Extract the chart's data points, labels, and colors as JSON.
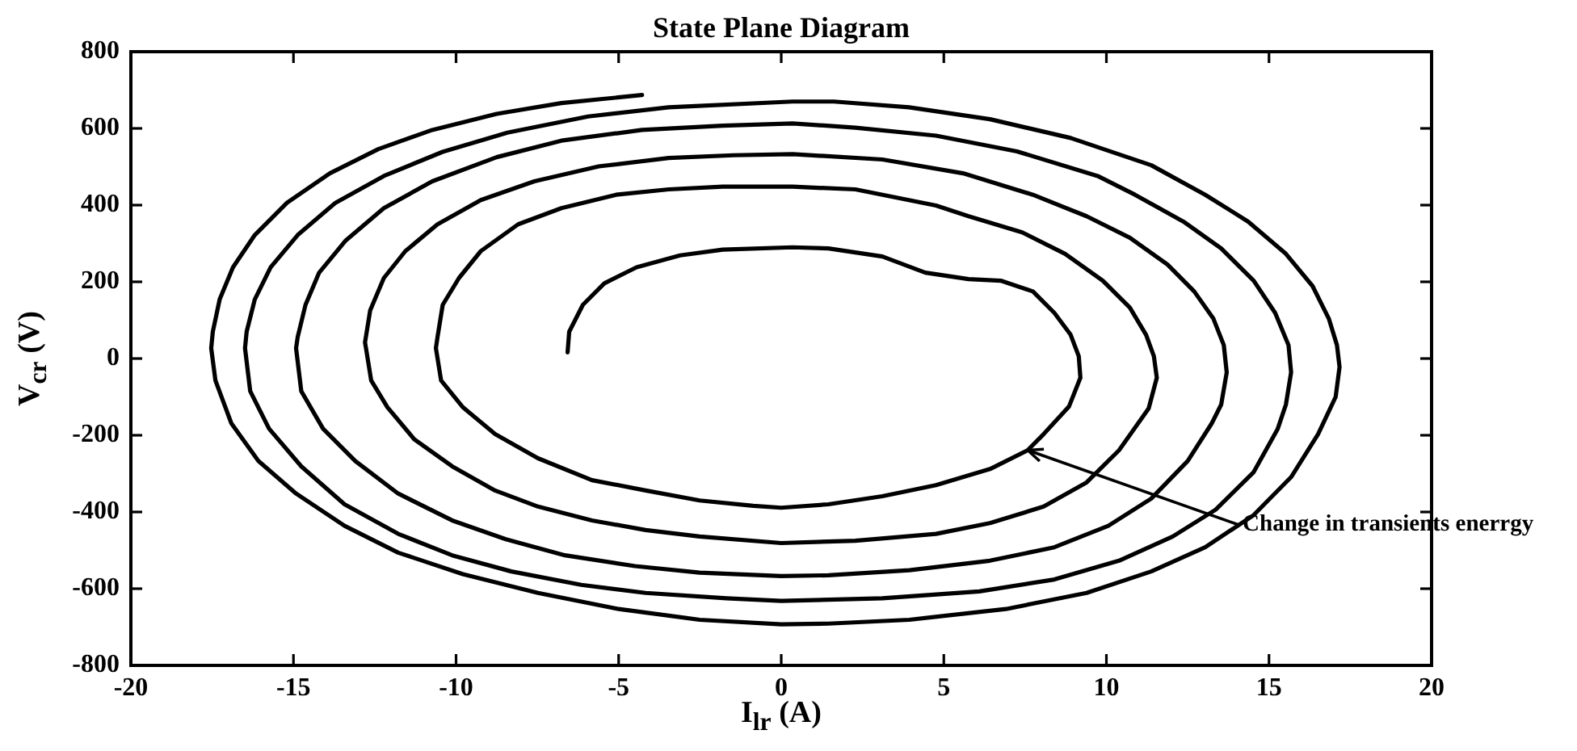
{
  "chart_data": {
    "type": "line",
    "title": "State Plane Diagram",
    "xlabel": "I$_{lr}$ (A)",
    "ylabel": "V$_{cr}$ (V)",
    "xlim": [
      -20,
      20
    ],
    "xticks": [
      -20,
      -15,
      -10,
      -5,
      0,
      5,
      10,
      15,
      20
    ],
    "ylim": [
      -800,
      800
    ],
    "yticks": [
      -800,
      -600,
      -400,
      -200,
      0,
      200,
      400,
      600,
      800
    ],
    "color": "#000000",
    "x": [
      -6.57,
      -6.52,
      -6.1,
      -5.44,
      -4.45,
      -3.11,
      -1.8,
      0.35,
      1.45,
      3.11,
      4.43,
      5.76,
      6.75,
      7.74,
      8.4,
      8.9,
      9.15,
      9.2,
      8.85,
      8.07,
      7.58,
      6.42,
      4.76,
      3.11,
      1.45,
      0,
      -0.86,
      -2.51,
      -4.17,
      -5.82,
      -7.48,
      -8.8,
      -9.79,
      -10.46,
      -10.62,
      -10.57,
      -10.41,
      -9.91,
      -9.24,
      -8.09,
      -6.76,
      -5.08,
      -3.46,
      -1.8,
      0.35,
      2.28,
      4.76,
      5.76,
      7.41,
      8.73,
      9.89,
      10.72,
      11.22,
      11.46,
      11.55,
      11.3,
      10.39,
      9.39,
      8.07,
      6.42,
      4.76,
      2.28,
      0,
      -2.51,
      -4.17,
      -5.82,
      -7.48,
      -8.8,
      -10.12,
      -11.28,
      -12.11,
      -12.61,
      -12.77,
      -12.8,
      -12.64,
      -12.22,
      -11.56,
      -10.57,
      -9.24,
      -7.59,
      -5.61,
      -3.46,
      -1.47,
      0.35,
      3.11,
      5.59,
      7.74,
      9.39,
      10.72,
      11.88,
      12.7,
      13.29,
      13.61,
      13.7,
      13.53,
      13.24,
      12.5,
      11.38,
      10.06,
      8.4,
      6.42,
      3.94,
      1.45,
      0,
      -2.51,
      -4.5,
      -6.65,
      -8.47,
      -10.12,
      -11.78,
      -13.1,
      -14.09,
      -14.76,
      -14.92,
      -14.87,
      -14.63,
      -14.21,
      -13.39,
      -12.22,
      -10.73,
      -8.75,
      -6.76,
      -4.28,
      -1.8,
      0.35,
      2.28,
      4.76,
      7.25,
      9.73,
      10.88,
      12.37,
      13.53,
      14.53,
      15.19,
      15.6,
      15.68,
      15.52,
      15.27,
      14.53,
      13.36,
      12.04,
      10.39,
      8.4,
      6.09,
      3.11,
      0,
      -1.69,
      -4.17,
      -6.15,
      -8.3,
      -10.12,
      -11.78,
      -13.43,
      -14.76,
      -15.75,
      -16.33,
      -16.49,
      -16.44,
      -16.19,
      -15.7,
      -14.87,
      -13.71,
      -12.22,
      -10.41,
      -8.42,
      -5.94,
      -3.46,
      0.35,
      1.62,
      3.93,
      6.42,
      8.9,
      11.38,
      13.04,
      14.36,
      15.52,
      16.34,
      16.84,
      17.09,
      17.17,
      17.05,
      16.51,
      15.68,
      14.53,
      13.04,
      11.38,
      9.39,
      6.91,
      3.94,
      1.45,
      0,
      -2.51,
      -5,
      -7.48,
      -9.79,
      -11.78,
      -13.43,
      -14.92,
      -16.08,
      -16.91,
      -17.4,
      -17.53,
      -17.48,
      -17.27,
      -16.86,
      -16.19,
      -15.2,
      -13.88,
      -12.39,
      -10.73,
      -8.75,
      -6.76,
      -4.28
    ],
    "values": [
      16,
      70,
      140,
      196,
      238,
      269,
      284,
      290,
      287,
      266,
      224,
      207,
      203,
      175,
      119,
      62,
      6,
      -50,
      -125,
      -197,
      -239,
      -288,
      -330,
      -359,
      -380,
      -389,
      -384,
      -370,
      -344,
      -317,
      -260,
      -197,
      -127,
      -57,
      27,
      56,
      140,
      210,
      280,
      350,
      392,
      427,
      441,
      448,
      448,
      441,
      399,
      371,
      329,
      273,
      203,
      133,
      62,
      6,
      -50,
      -130,
      -239,
      -323,
      -386,
      -429,
      -457,
      -475,
      -481,
      -464,
      -447,
      -422,
      -386,
      -344,
      -281,
      -211,
      -127,
      -57,
      27,
      42,
      126,
      210,
      280,
      350,
      413,
      462,
      501,
      523,
      530,
      533,
      519,
      483,
      427,
      371,
      315,
      245,
      175,
      104,
      35,
      -36,
      -120,
      -169,
      -267,
      -365,
      -436,
      -492,
      -527,
      -552,
      -565,
      -567,
      -558,
      -541,
      -513,
      -471,
      -422,
      -352,
      -267,
      -183,
      -85,
      27,
      56,
      140,
      224,
      308,
      392,
      462,
      525,
      568,
      596,
      607,
      613,
      602,
      581,
      540,
      476,
      427,
      357,
      287,
      203,
      119,
      35,
      -36,
      -120,
      -183,
      -296,
      -394,
      -464,
      -527,
      -576,
      -607,
      -625,
      -632,
      -625,
      -611,
      -590,
      -555,
      -513,
      -457,
      -380,
      -281,
      -183,
      -85,
      27,
      70,
      154,
      238,
      322,
      406,
      476,
      539,
      589,
      631,
      655,
      670,
      670,
      655,
      624,
      575,
      504,
      427,
      357,
      273,
      189,
      104,
      35,
      -22,
      -100,
      -197,
      -309,
      -408,
      -492,
      -555,
      -611,
      -653,
      -681,
      -691,
      -693,
      -681,
      -653,
      -611,
      -562,
      -506,
      -436,
      -352,
      -267,
      -169,
      -57,
      27,
      70,
      154,
      238,
      322,
      406,
      483,
      546,
      596,
      638,
      666,
      687
    ],
    "annotations": [
      {
        "text": "Change in transients enerrgy",
        "x": 7.58,
        "y": -239
      }
    ]
  }
}
